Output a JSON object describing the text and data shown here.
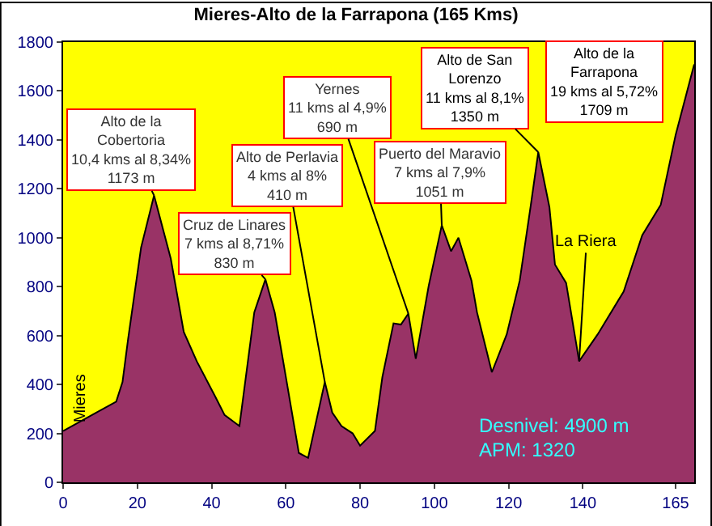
{
  "chart_data": {
    "type": "area",
    "title": "Mieres-Alto de la Farrapona (165 Kms)",
    "x": [
      0,
      14.3,
      16,
      17.5,
      21,
      24.5,
      29,
      32.5,
      36,
      41,
      43.5,
      47.5,
      51.5,
      54.5,
      57,
      59,
      63.5,
      66,
      70.5,
      72.5,
      75,
      78,
      80,
      84,
      86,
      89,
      91,
      93,
      95,
      98.5,
      102,
      104.5,
      106.5,
      110,
      111.5,
      115.5,
      119.5,
      123,
      126,
      128,
      131,
      132.5,
      135.5,
      139,
      144,
      151,
      156,
      161,
      165,
      170
    ],
    "series": [
      {
        "color": "#993366",
        "values": [
          210,
          330,
          410,
          585,
          960,
          1173,
          915,
          615,
          495,
          350,
          275,
          230,
          695,
          830,
          695,
          520,
          120,
          100,
          410,
          285,
          230,
          200,
          150,
          210,
          430,
          650,
          645,
          690,
          505,
          805,
          1051,
          945,
          1000,
          825,
          695,
          450,
          605,
          825,
          1135,
          1350,
          1125,
          890,
          815,
          495,
          605,
          780,
          1010,
          1135,
          1420,
          1709
        ]
      }
    ],
    "xlim": [
      0,
      170
    ],
    "xticks": [
      0,
      20,
      40,
      60,
      80,
      100,
      120,
      140,
      165
    ],
    "ylim": [
      0,
      1800
    ],
    "yticks": [
      0,
      200,
      400,
      600,
      800,
      1000,
      1200,
      1400,
      1600,
      1800
    ],
    "grid": false,
    "annotations": [
      {
        "text": "Alto de la\nCobertoria\n10,4 kms al 8,34%\n1173 m",
        "x": 24.5,
        "y": 1173
      },
      {
        "text": "Cruz de Linares\n7 kms al 8,71%\n830 m",
        "x": 54.5,
        "y": 830
      },
      {
        "text": "Alto de Perlavia\n4 kms al 8%\n410 m",
        "x": 70.5,
        "y": 410
      },
      {
        "text": "Yernes\n11 kms al 4,9%\n690 m",
        "x": 93,
        "y": 690
      },
      {
        "text": "Puerto del Maravio\n7 kms al 7,9%\n1051 m",
        "x": 102,
        "y": 1051
      },
      {
        "text": "Alto de San\nLorenzo\n11 kms al 8,1%\n1350 m",
        "x": 128,
        "y": 1350
      },
      {
        "text": "Alto de la\nFarrapona\n19 kms al 5,72%\n1709 m",
        "x": 170,
        "y": 1709
      },
      {
        "text": "La Riera",
        "x": 139,
        "y": 495
      },
      {
        "text": "Mieres",
        "x": 0,
        "y": 210
      },
      "Desnivel: 4900 m",
      "APM: 1320"
    ]
  }
}
